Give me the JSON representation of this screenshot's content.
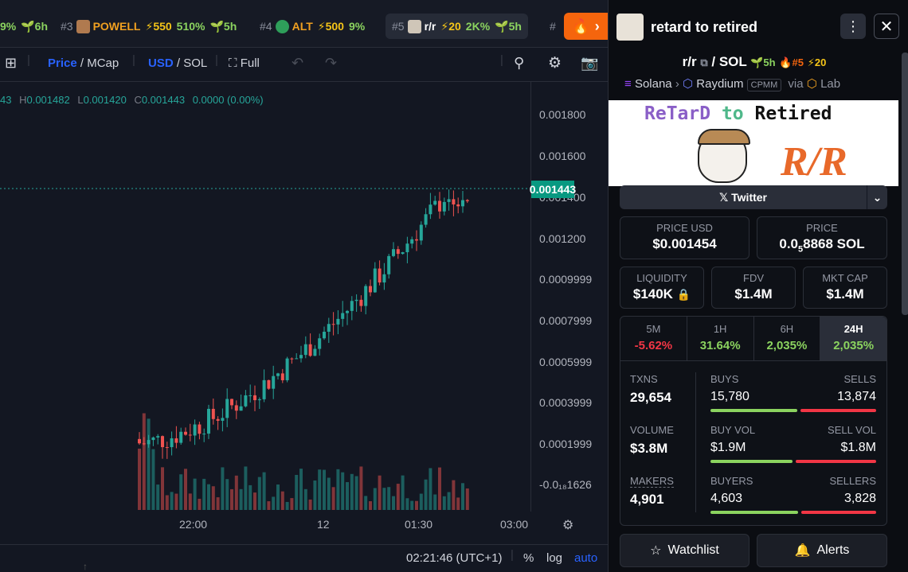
{
  "ticker": [
    {
      "num": "",
      "sym": "",
      "boost": "",
      "pct": "9%",
      "age": "6h"
    },
    {
      "num": "#3",
      "sym": "POWELL",
      "boost": "550",
      "pct": "510%",
      "age": "5h"
    },
    {
      "num": "#4",
      "sym": "ALT",
      "boost": "500",
      "pct": "9%",
      "age": ""
    },
    {
      "num": "#5",
      "sym": "r/r",
      "boost": "20",
      "pct": "2K%",
      "age": "5h"
    },
    {
      "num": "#",
      "sym": "",
      "boost": "",
      "pct": "",
      "age": ""
    }
  ],
  "toolbar": {
    "price": "Price",
    "mcap": "MCap",
    "usd": "USD",
    "sol": "SOL",
    "full": "Full"
  },
  "ohlc": {
    "o_tail": "43",
    "h_label": "H",
    "h": "0.001482",
    "l_label": "L",
    "l": "0.001420",
    "c_label": "C",
    "c": "0.001443",
    "change": "0.0000 (0.00%)"
  },
  "yaxis": [
    "0.001800",
    "0.001600",
    "0.001400",
    "0.001200",
    "0.0009999",
    "0.0007999",
    "0.0005999",
    "0.0003999",
    "0.0001999",
    "-0.0₁₈1626"
  ],
  "current_price": "0.001443",
  "xaxis": [
    "22:00",
    "12",
    "01:30",
    "03:00"
  ],
  "bottom": {
    "time": "02:21:46 (UTC+1)",
    "pct": "%",
    "log": "log",
    "auto": "auto"
  },
  "panel": {
    "title": "retard to retired",
    "pair_base": "r/r",
    "pair_quote": "SOL",
    "age": "5h",
    "rank": "#5",
    "boost": "20",
    "chain": "Solana",
    "dex": "Raydium",
    "pool": "CPMM",
    "via": "via",
    "lab": "Lab",
    "banner_line1": "ReTarD",
    "banner_to": "to",
    "banner_line2": "Retired",
    "banner_logo": "R/R",
    "twitter": "Twitter",
    "price_usd_label": "PRICE USD",
    "price_usd": "$0.001454",
    "price_label": "PRICE",
    "price_sol_main": "0.0",
    "price_sol_sub": "5",
    "price_sol_rest": "8868 SOL",
    "liquidity_label": "LIQUIDITY",
    "liquidity": "$140K",
    "fdv_label": "FDV",
    "fdv": "$1.4M",
    "mcap_label": "MKT CAP",
    "mcap": "$1.4M",
    "tf": [
      {
        "label": "5M",
        "value": "-5.62%"
      },
      {
        "label": "1H",
        "value": "31.64%"
      },
      {
        "label": "6H",
        "value": "2,035%"
      },
      {
        "label": "24H",
        "value": "2,035%"
      }
    ],
    "txns_label": "TXNS",
    "txns": "29,654",
    "buys_label": "BUYS",
    "buys": "15,780",
    "sells_label": "SELLS",
    "sells": "13,874",
    "volume_label": "VOLUME",
    "volume": "$3.8M",
    "buyvol_label": "BUY VOL",
    "buyvol": "$1.9M",
    "sellvol_label": "SELL VOL",
    "sellvol": "$1.8M",
    "makers_label": "MAKERS",
    "makers": "4,901",
    "buyers_label": "BUYERS",
    "buyers": "4,603",
    "sellers_label": "SELLERS",
    "sellers": "3,828",
    "watchlist": "Watchlist",
    "alerts": "Alerts"
  },
  "colors": {
    "up": "#26a69a",
    "down": "#ef5350",
    "accent": "#2962ff",
    "green": "#8bd35f",
    "red": "#f23645",
    "orange": "#f5650d"
  }
}
